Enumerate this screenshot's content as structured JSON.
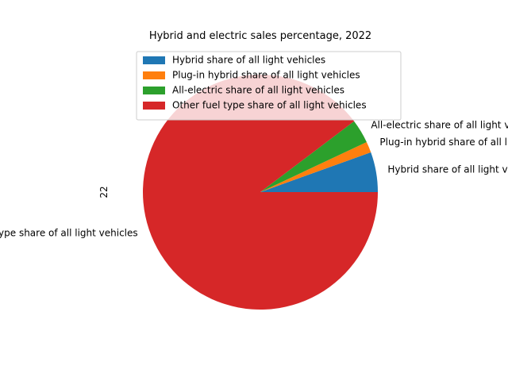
{
  "chart_data": {
    "type": "pie",
    "title": "Hybrid and electric sales percentage, 2022",
    "ylabel": "22",
    "categories": [
      "Hybrid share of all light vehicles",
      "Plug-in hybrid share of all light vehicles",
      "All-electric share of all light vehicles",
      "Other fuel type share of all light vehicles"
    ],
    "values": [
      5.5,
      1.5,
      3.3,
      89.7
    ],
    "colors": [
      "#1f77b4",
      "#ff7f0e",
      "#2ca02c",
      "#d62728"
    ],
    "legend_position": "top-center",
    "start_angle_deg": 0,
    "direction": "counterclockwise"
  }
}
